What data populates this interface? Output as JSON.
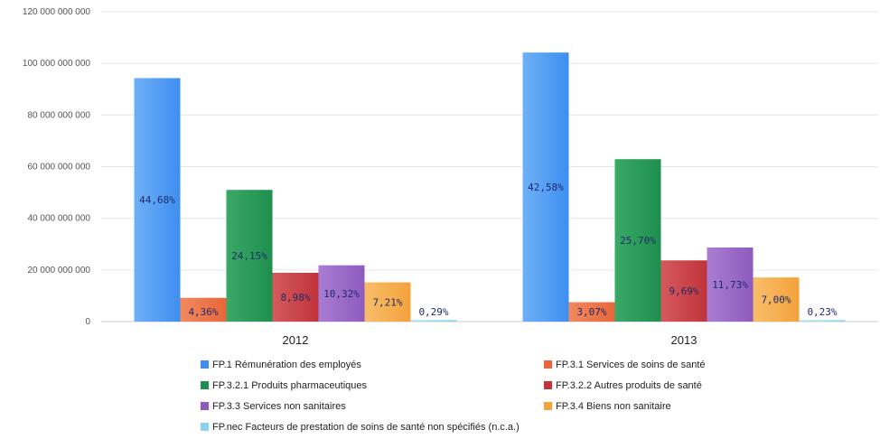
{
  "chart_data": {
    "type": "bar",
    "categories": [
      "2012",
      "2013"
    ],
    "ylim": [
      0,
      120000000000
    ],
    "yticks": [
      {
        "value": 0,
        "label": "0"
      },
      {
        "value": 20000000000,
        "label": "20 000 000 000"
      },
      {
        "value": 40000000000,
        "label": "40 000 000 000"
      },
      {
        "value": 60000000000,
        "label": "60 000 000 000"
      },
      {
        "value": 80000000000,
        "label": "80 000 000 000"
      },
      {
        "value": 100000000000,
        "label": "100 000 000 000"
      },
      {
        "value": 120000000000,
        "label": "120 000 000 000"
      }
    ],
    "grid": true,
    "legend_position": "bottom",
    "series": [
      {
        "name": "FP.1 Rémunération des employés",
        "color": "#3d8ef0",
        "color_light": "#6fb0f7",
        "values": [
          94300000000,
          104200000000
        ],
        "labels": [
          "44,68%",
          "42,58%"
        ]
      },
      {
        "name": "FP.3.1 Services de soins de santé",
        "color": "#e8663a",
        "color_light": "#f08a5e",
        "values": [
          9200000000,
          7500000000
        ],
        "labels": [
          "4,36%",
          "3,07%"
        ]
      },
      {
        "name": "FP.3.2.1 Produits pharmaceutiques",
        "color": "#1e8f4e",
        "color_light": "#3aa866",
        "values": [
          51000000000,
          62900000000
        ],
        "labels": [
          "24,15%",
          "25,70%"
        ]
      },
      {
        "name": "FP.3.2.2 Autres produits de santé",
        "color": "#c0343a",
        "color_light": "#d45a5e",
        "values": [
          18900000000,
          23700000000
        ],
        "labels": [
          "8,98%",
          "9,69%"
        ]
      },
      {
        "name": "FP.3.3 Services non sanitaires",
        "color": "#8e5bbd",
        "color_light": "#a97dd3",
        "values": [
          21800000000,
          28700000000
        ],
        "labels": [
          "10,32%",
          "11,73%"
        ]
      },
      {
        "name": "FP.3.4 Biens non sanitaire",
        "color": "#f4a23a",
        "color_light": "#f8bd6a",
        "values": [
          15200000000,
          17100000000
        ],
        "labels": [
          "7,21%",
          "7,00%"
        ]
      },
      {
        "name": "FP.nec Facteurs de prestation de soins de santé non spécifiés (n.c.a.)",
        "color": "#8ad3ef",
        "color_light": "#b3e3f5",
        "values": [
          600000000,
          560000000
        ],
        "labels": [
          "0,29%",
          "0,23%"
        ]
      }
    ]
  }
}
